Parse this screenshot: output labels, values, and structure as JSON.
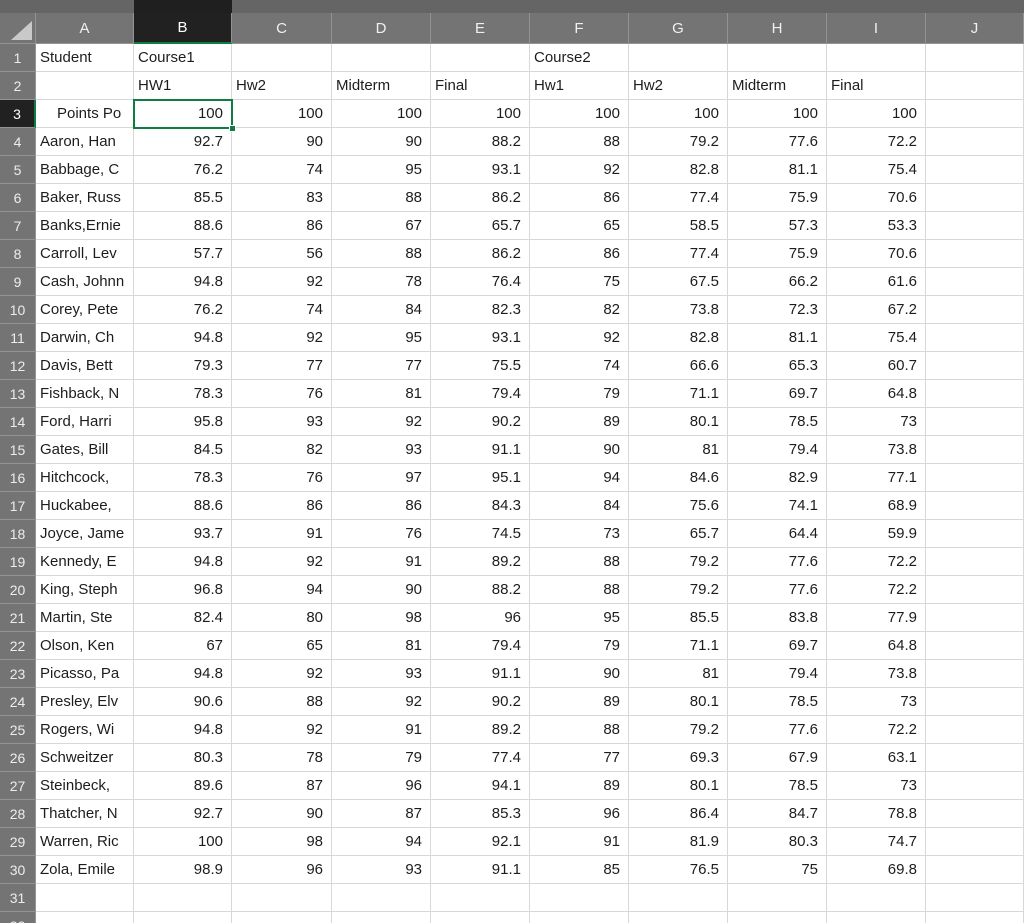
{
  "sheet": {
    "column_letters": [
      "A",
      "B",
      "C",
      "D",
      "E",
      "F",
      "G",
      "H",
      "I",
      "J"
    ],
    "selection": {
      "cell": "B3",
      "column": "B",
      "row": "3",
      "displayed_value": "100"
    },
    "row1": {
      "num": "1",
      "student_header": "Student",
      "course1": "Course1",
      "course2": "Course2"
    },
    "row2": {
      "num": "2",
      "labels": {
        "B": "HW1",
        "C": "Hw2",
        "D": "Midterm",
        "E": "Final",
        "F": "Hw1",
        "G": "Hw2",
        "H": "Midterm",
        "I": "Final"
      }
    },
    "points_row": {
      "num": "3",
      "label": "Points Po",
      "values": [
        100,
        100,
        100,
        100,
        100,
        100,
        100,
        100
      ]
    },
    "students": [
      {
        "num": "4",
        "name": "Aaron, Han",
        "values": [
          92.7,
          90,
          90,
          88.2,
          88,
          79.2,
          77.6,
          72.2
        ]
      },
      {
        "num": "5",
        "name": "Babbage, C",
        "values": [
          76.2,
          74,
          95,
          93.1,
          92,
          82.8,
          81.1,
          75.4
        ]
      },
      {
        "num": "6",
        "name": "Baker, Russ",
        "values": [
          85.5,
          83,
          88,
          86.2,
          86,
          77.4,
          75.9,
          70.6
        ]
      },
      {
        "num": "7",
        "name": "Banks,Ernie",
        "values": [
          88.6,
          86,
          67,
          65.7,
          65,
          58.5,
          57.3,
          53.3
        ]
      },
      {
        "num": "8",
        "name": "Carroll, Lev",
        "values": [
          57.7,
          56,
          88,
          86.2,
          86,
          77.4,
          75.9,
          70.6
        ]
      },
      {
        "num": "9",
        "name": "Cash, Johnn",
        "values": [
          94.8,
          92,
          78,
          76.4,
          75,
          67.5,
          66.2,
          61.6
        ]
      },
      {
        "num": "10",
        "name": "Corey, Pete",
        "values": [
          76.2,
          74,
          84,
          82.3,
          82,
          73.8,
          72.3,
          67.2
        ]
      },
      {
        "num": "11",
        "name": "Darwin, Ch",
        "values": [
          94.8,
          92,
          95,
          93.1,
          92,
          82.8,
          81.1,
          75.4
        ]
      },
      {
        "num": "12",
        "name": "Davis, Bett",
        "values": [
          79.3,
          77,
          77,
          75.5,
          74,
          66.6,
          65.3,
          60.7
        ]
      },
      {
        "num": "13",
        "name": "Fishback, N",
        "values": [
          78.3,
          76,
          81,
          79.4,
          79,
          71.1,
          69.7,
          64.8
        ]
      },
      {
        "num": "14",
        "name": "Ford, Harri",
        "values": [
          95.8,
          93,
          92,
          90.2,
          89,
          80.1,
          78.5,
          73
        ]
      },
      {
        "num": "15",
        "name": "Gates, Bill",
        "values": [
          84.5,
          82,
          93,
          91.1,
          90,
          81,
          79.4,
          73.8
        ]
      },
      {
        "num": "16",
        "name": "Hitchcock,",
        "values": [
          78.3,
          76,
          97,
          95.1,
          94,
          84.6,
          82.9,
          77.1
        ]
      },
      {
        "num": "17",
        "name": "Huckabee,",
        "values": [
          88.6,
          86,
          86,
          84.3,
          84,
          75.6,
          74.1,
          68.9
        ]
      },
      {
        "num": "18",
        "name": "Joyce, Jame",
        "values": [
          93.7,
          91,
          76,
          74.5,
          73,
          65.7,
          64.4,
          59.9
        ]
      },
      {
        "num": "19",
        "name": "Kennedy, E",
        "values": [
          94.8,
          92,
          91,
          89.2,
          88,
          79.2,
          77.6,
          72.2
        ]
      },
      {
        "num": "20",
        "name": "King, Steph",
        "values": [
          96.8,
          94,
          90,
          88.2,
          88,
          79.2,
          77.6,
          72.2
        ]
      },
      {
        "num": "21",
        "name": "Martin, Ste",
        "values": [
          82.4,
          80,
          98,
          96,
          95,
          85.5,
          83.8,
          77.9
        ]
      },
      {
        "num": "22",
        "name": "Olson, Ken",
        "values": [
          67,
          65,
          81,
          79.4,
          79,
          71.1,
          69.7,
          64.8
        ]
      },
      {
        "num": "23",
        "name": "Picasso, Pa",
        "values": [
          94.8,
          92,
          93,
          91.1,
          90,
          81,
          79.4,
          73.8
        ]
      },
      {
        "num": "24",
        "name": "Presley, Elv",
        "values": [
          90.6,
          88,
          92,
          90.2,
          89,
          80.1,
          78.5,
          73
        ]
      },
      {
        "num": "25",
        "name": "Rogers, Wi",
        "values": [
          94.8,
          92,
          91,
          89.2,
          88,
          79.2,
          77.6,
          72.2
        ]
      },
      {
        "num": "26",
        "name": "Schweitzer",
        "values": [
          80.3,
          78,
          79,
          77.4,
          77,
          69.3,
          67.9,
          63.1
        ]
      },
      {
        "num": "27",
        "name": "Steinbeck,",
        "values": [
          89.6,
          87,
          96,
          94.1,
          89,
          80.1,
          78.5,
          73
        ]
      },
      {
        "num": "28",
        "name": "Thatcher, N",
        "values": [
          92.7,
          90,
          87,
          85.3,
          96,
          86.4,
          84.7,
          78.8
        ]
      },
      {
        "num": "29",
        "name": "Warren, Ric",
        "values": [
          100,
          98,
          94,
          92.1,
          91,
          81.9,
          80.3,
          74.7
        ]
      },
      {
        "num": "30",
        "name": "Zola, Emile",
        "values": [
          98.9,
          96,
          93,
          91.1,
          85,
          76.5,
          75,
          69.8
        ]
      }
    ],
    "empty_row_num": "31",
    "partial_row_num": "32",
    "colors": {
      "header_bg": "#747474",
      "selected_header_bg": "#212121",
      "accent_green": "#107c41",
      "gridline": "#d8d8d8",
      "cell_bg": "#ffffff",
      "cell_text": "#1d1d1d",
      "top_strip_bg": "#656565"
    }
  }
}
